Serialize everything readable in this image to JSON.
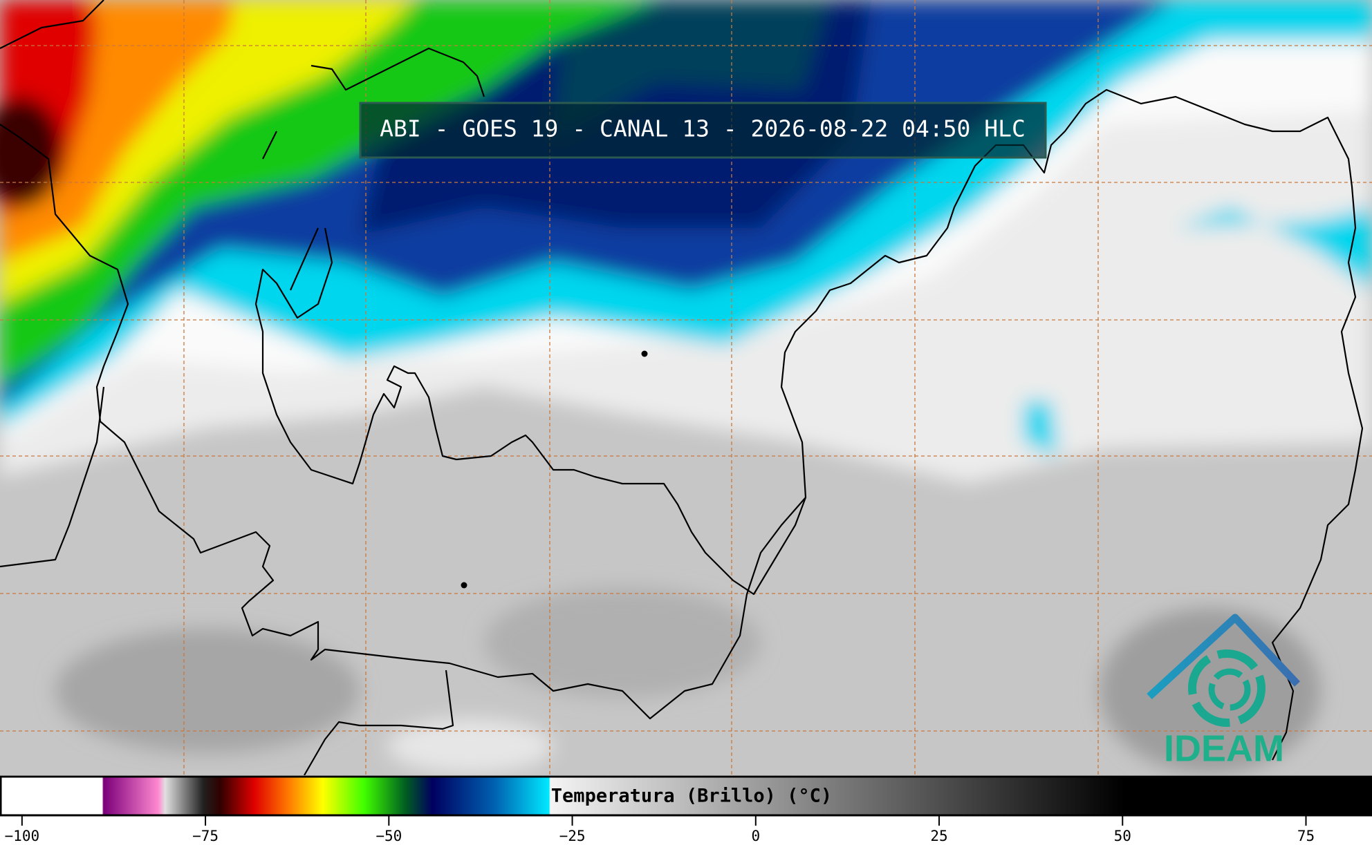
{
  "title": "ABI - GOES 19 - CANAL 13 - 2026-08-22 04:50 HLC",
  "colorbar": {
    "label": "Temperatura (Brillo) (°C)",
    "xlim": [
      -103,
      84
    ],
    "ticks": [
      {
        "value": -100,
        "label": "−100"
      },
      {
        "value": -75,
        "label": "−75"
      },
      {
        "value": -50,
        "label": "−50"
      },
      {
        "value": -25,
        "label": "−25"
      },
      0,
      25,
      50,
      75
    ]
  },
  "logo": {
    "text": "IDEAM"
  }
}
